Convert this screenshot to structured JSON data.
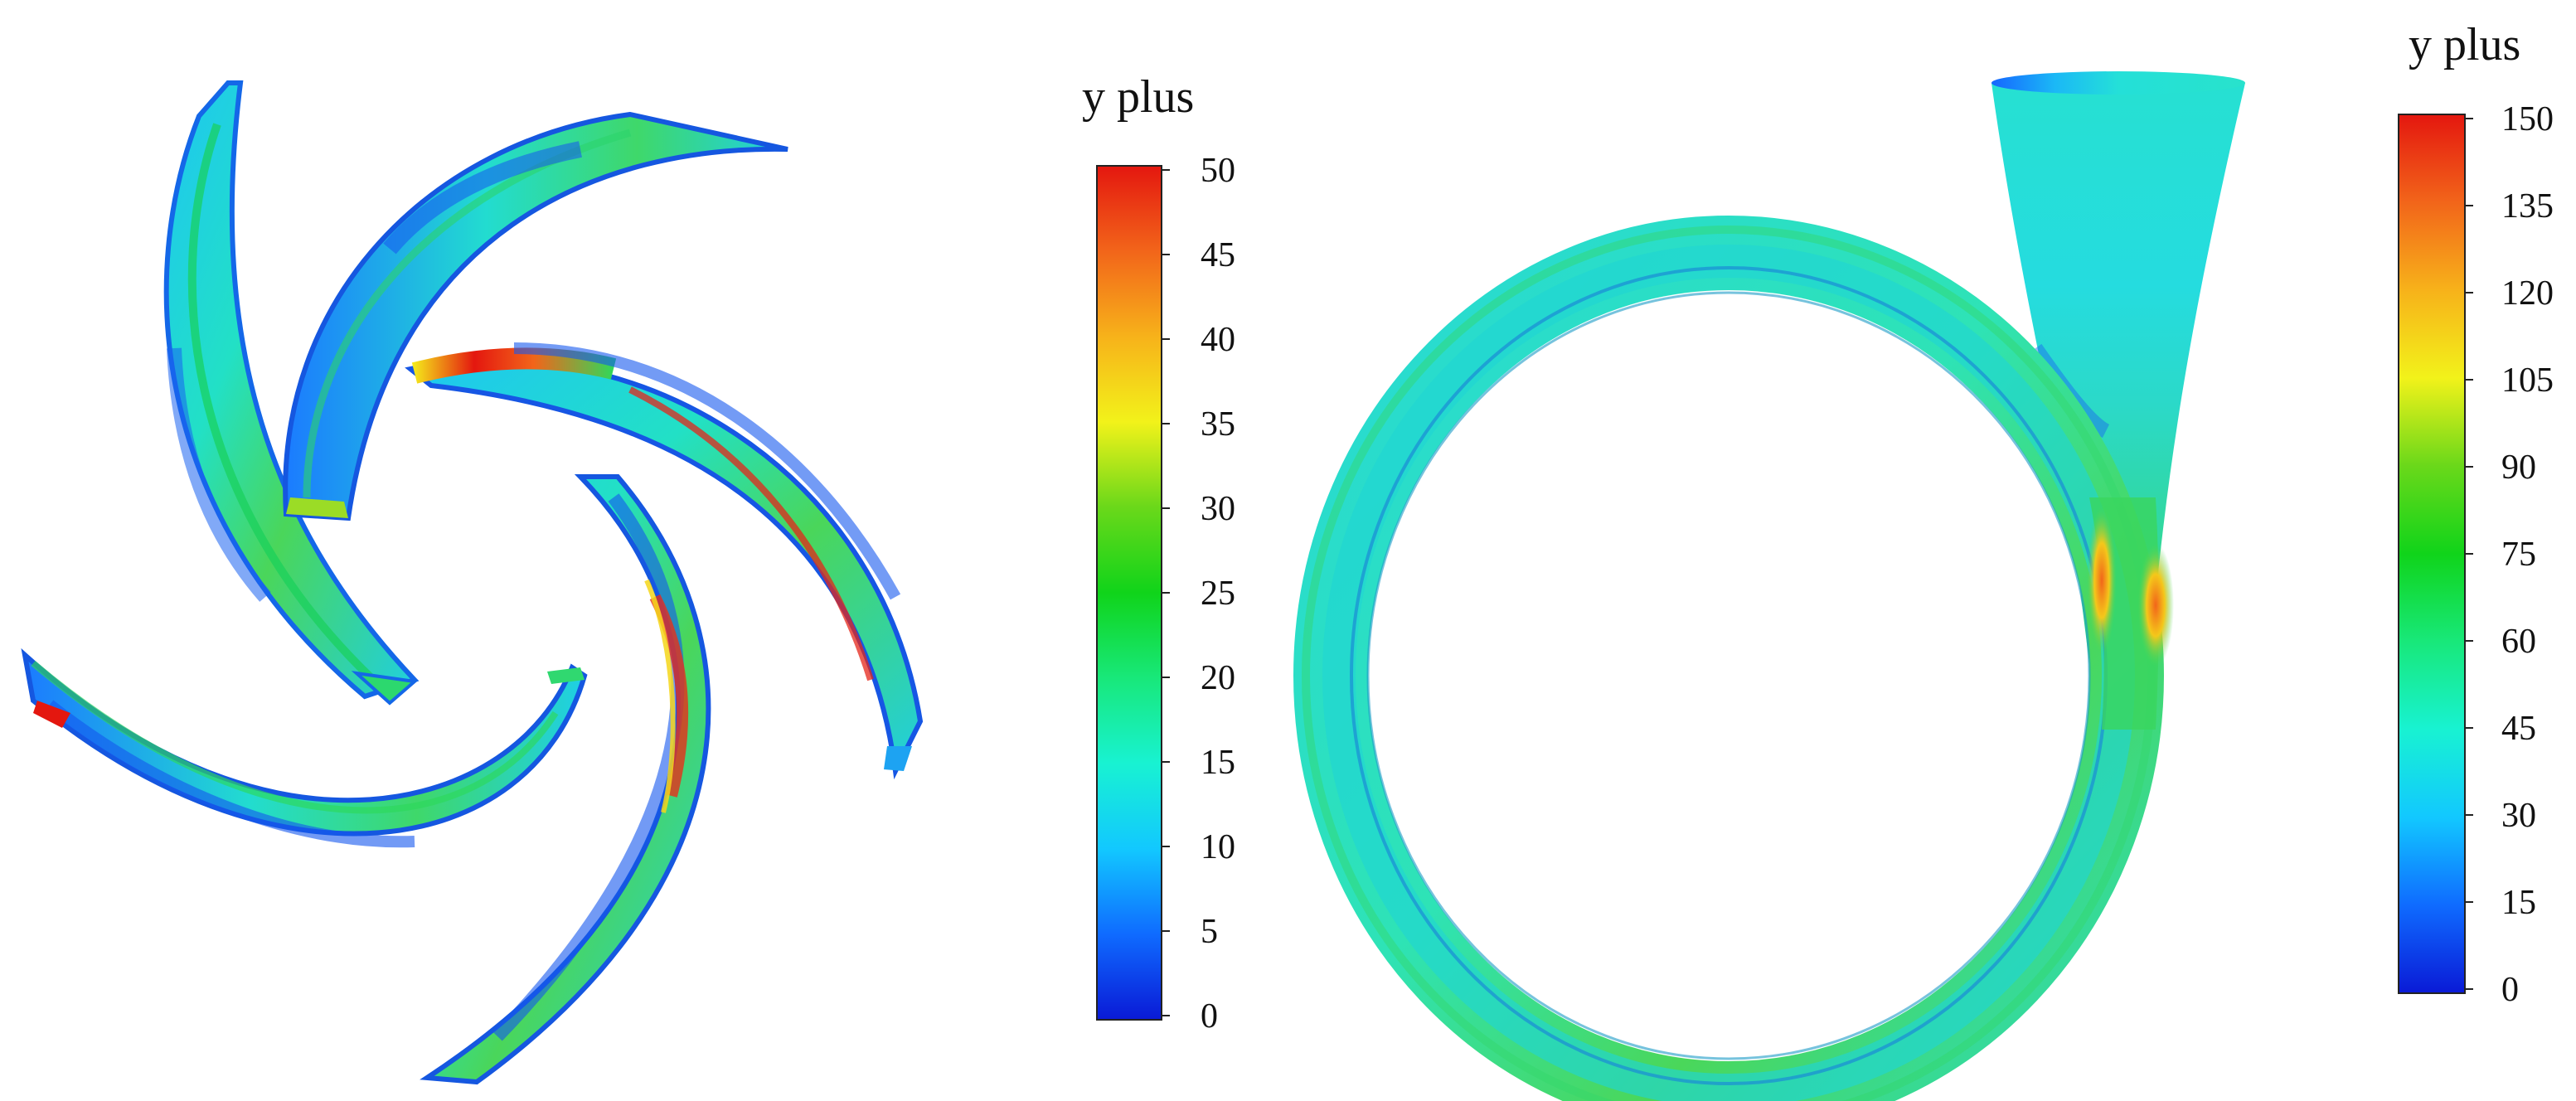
{
  "legend_left": {
    "title": "y plus",
    "ticks": [
      "0",
      "5",
      "10",
      "15",
      "20",
      "25",
      "30",
      "35",
      "40",
      "45",
      "50"
    ]
  },
  "legend_right": {
    "title": "y plus",
    "ticks": [
      "0",
      "15",
      "30",
      "45",
      "60",
      "75",
      "90",
      "105",
      "120",
      "135",
      "150"
    ]
  },
  "colors": {
    "scale": [
      "#0a1ad6",
      "#0f6bff",
      "#12c8ff",
      "#18f2d2",
      "#18e87a",
      "#10d41a",
      "#6ad81a",
      "#f2f21a",
      "#f7b21a",
      "#f2651a",
      "#e4170f"
    ],
    "blade_base": "#1ed6cf",
    "volute_base": "#2ee3c8"
  }
}
